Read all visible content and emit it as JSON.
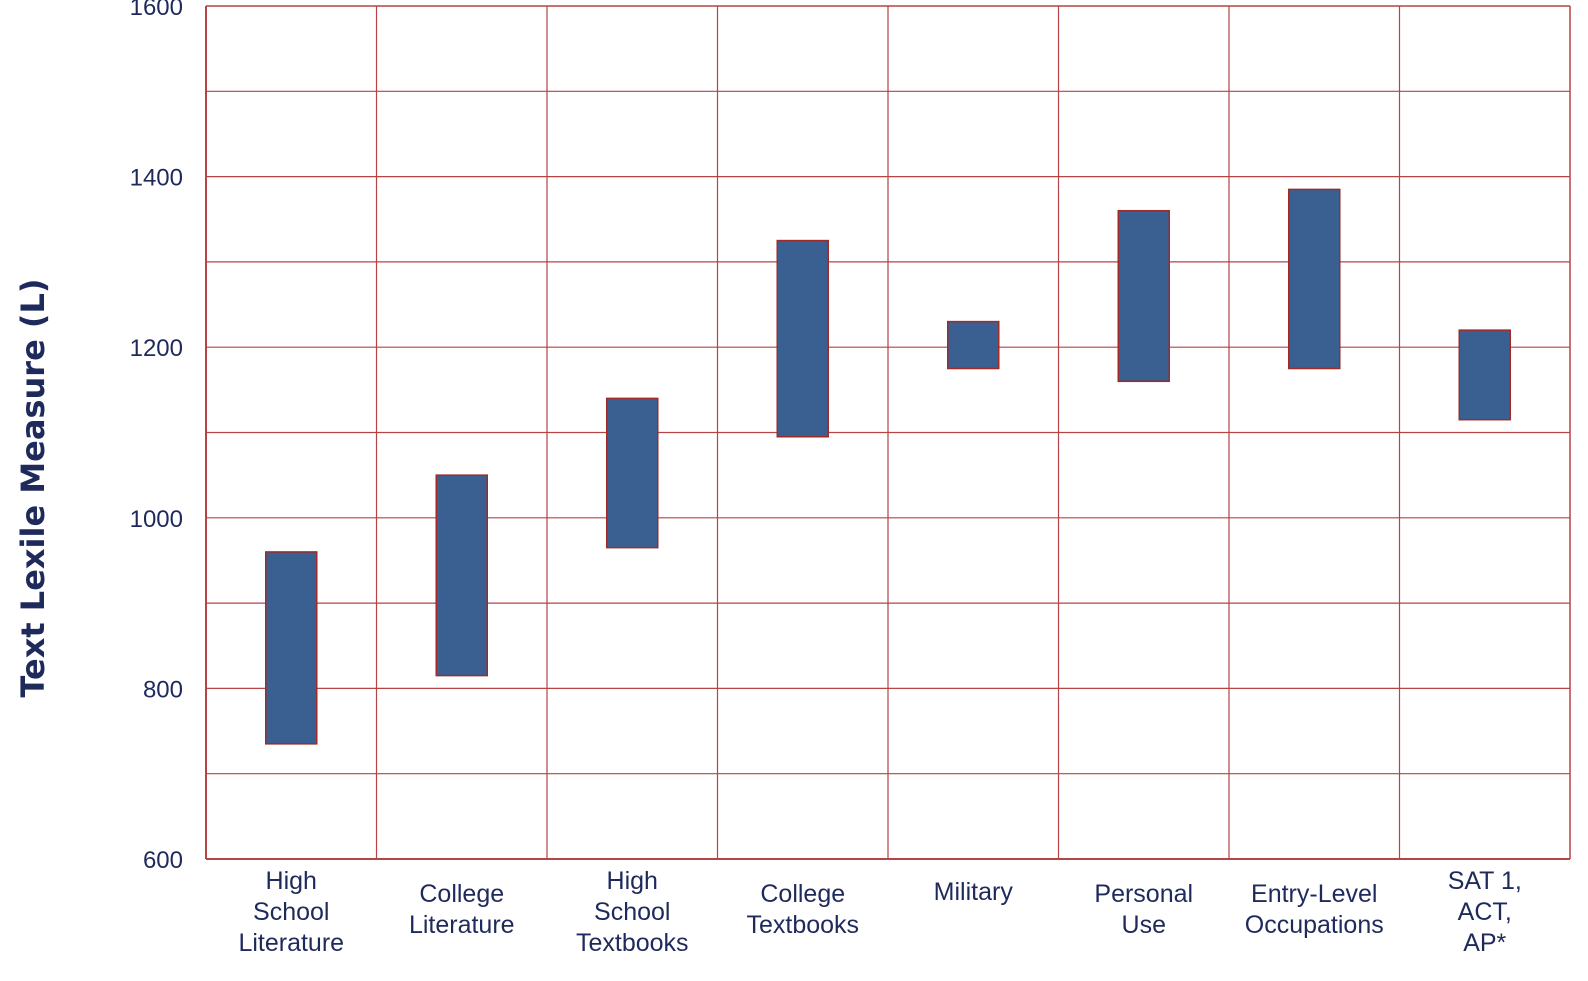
{
  "chart_data": {
    "type": "bar",
    "title": "",
    "xlabel": "",
    "ylabel": "Text Lexile Measure (L)",
    "ylim": [
      600,
      1600
    ],
    "y_ticks": [
      "600",
      "800",
      "1000",
      "1200",
      "1400",
      "1600"
    ],
    "y_gridlines": [
      700,
      800,
      900,
      1000,
      1100,
      1200,
      1300,
      1400,
      1500
    ],
    "grid": true,
    "legend": "none",
    "categories": [
      [
        "High",
        "School",
        "Literature"
      ],
      [
        "College",
        "Literature"
      ],
      [
        "High",
        "School",
        "Textbooks"
      ],
      [
        "College",
        "Textbooks"
      ],
      [
        "Military"
      ],
      [
        "Personal",
        "Use"
      ],
      [
        "Entry-Level",
        "Occupations"
      ],
      [
        "SAT 1,",
        "ACT,",
        "AP*"
      ]
    ],
    "ranges": [
      [
        735,
        960
      ],
      [
        815,
        1050
      ],
      [
        965,
        1140
      ],
      [
        1095,
        1325
      ],
      [
        1175,
        1230
      ],
      [
        1160,
        1360
      ],
      [
        1175,
        1385
      ],
      [
        1115,
        1220
      ]
    ],
    "colors": {
      "bar": "#3a5f91",
      "bar_edge": "#9e2a2a",
      "grid": "#b54444",
      "text": "#1f2a5c"
    }
  }
}
